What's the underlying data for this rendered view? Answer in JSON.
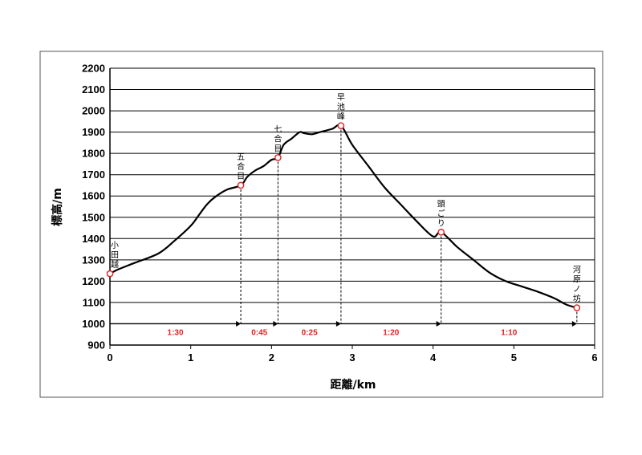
{
  "chart_data": {
    "type": "line",
    "xlabel": "距離/km",
    "ylabel": "標高/m",
    "xlim": [
      0,
      6
    ],
    "ylim": [
      900,
      2200
    ],
    "xticks": [
      "0",
      "1",
      "2",
      "3",
      "4",
      "5",
      "6"
    ],
    "yticks": [
      "900",
      "1000",
      "1100",
      "1200",
      "1300",
      "1400",
      "1500",
      "1600",
      "1700",
      "1800",
      "1900",
      "2000",
      "2100",
      "2200"
    ],
    "grid": "horizontal",
    "series": [
      {
        "x": [
          0,
          0.1,
          0.3,
          0.6,
          0.8,
          1.0,
          1.1,
          1.2,
          1.3,
          1.45,
          1.62,
          1.7,
          1.8,
          1.9,
          2.0,
          2.08,
          2.15,
          2.25,
          2.35,
          2.4,
          2.5,
          2.6,
          2.75,
          2.86,
          3.0,
          3.2,
          3.4,
          3.6,
          3.8,
          4.0,
          4.1,
          4.3,
          4.5,
          4.7,
          4.9,
          5.1,
          5.3,
          5.5,
          5.65,
          5.78
        ],
        "y": [
          1235,
          1255,
          1285,
          1330,
          1390,
          1460,
          1510,
          1560,
          1595,
          1630,
          1650,
          1690,
          1720,
          1740,
          1770,
          1780,
          1840,
          1870,
          1900,
          1895,
          1890,
          1900,
          1915,
          1930,
          1840,
          1740,
          1640,
          1560,
          1480,
          1410,
          1430,
          1360,
          1300,
          1240,
          1200,
          1175,
          1150,
          1120,
          1090,
          1075
        ]
      }
    ],
    "waypoints": [
      {
        "name": "小田越",
        "x": 0.0,
        "y": 1235
      },
      {
        "name": "五合目",
        "x": 1.62,
        "y": 1650
      },
      {
        "name": "七合目",
        "x": 2.08,
        "y": 1780
      },
      {
        "name": "早池峰",
        "x": 2.86,
        "y": 1930
      },
      {
        "name": "頭ごり",
        "x": 4.1,
        "y": 1430
      },
      {
        "name": "河原ノ坊",
        "x": 5.78,
        "y": 1075
      }
    ],
    "segment_times": [
      "1:30",
      "0:45",
      "0:25",
      "1:20",
      "1:10"
    ],
    "segment_arrow_y": 1000,
    "colors": {
      "line": "#000000",
      "marker": "#e02020",
      "time_label": "#e02020",
      "grid": "#000000"
    }
  }
}
